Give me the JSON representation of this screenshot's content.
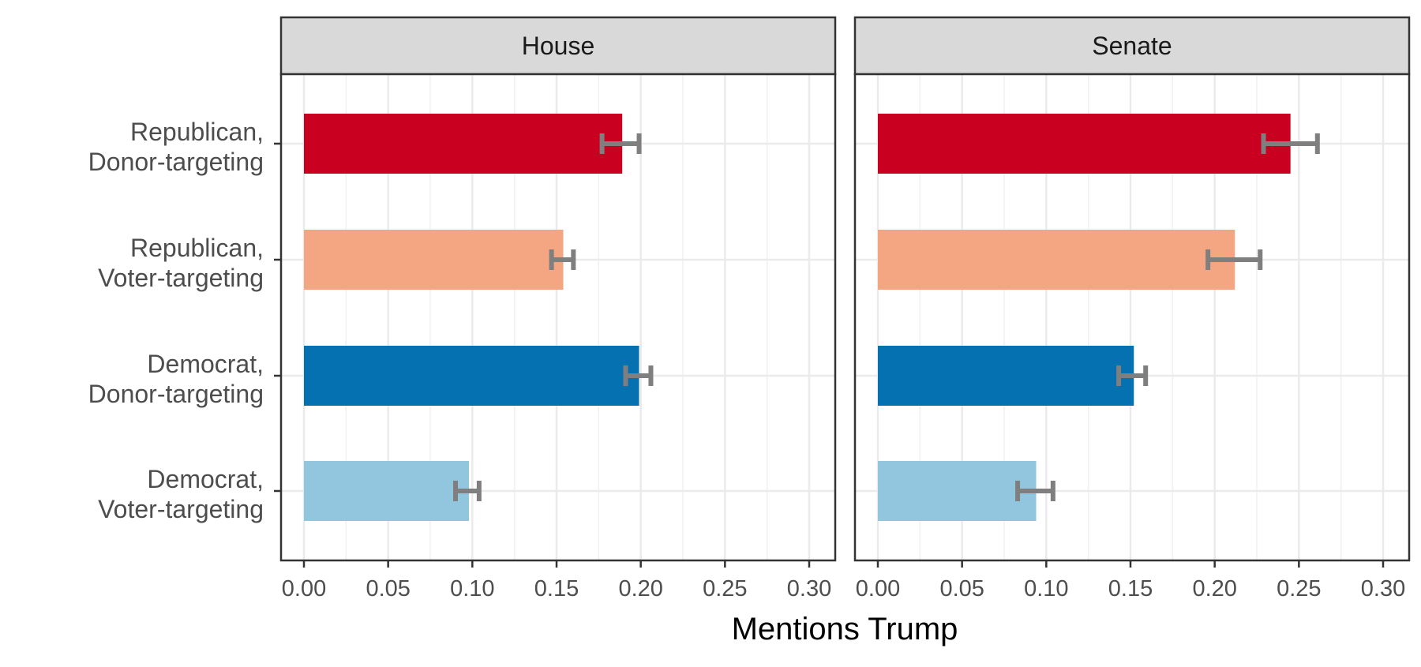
{
  "chart_data": {
    "type": "bar",
    "orientation": "horizontal",
    "xlabel": "Mentions Trump",
    "xlim": [
      0,
      0.3
    ],
    "xticks": [
      "0.00",
      "0.05",
      "0.10",
      "0.15",
      "0.20",
      "0.25",
      "0.30"
    ],
    "grid": true,
    "categories": [
      "Republican,\nDonor-targeting",
      "Republican,\nVoter-targeting",
      "Democrat,\nDonor-targeting",
      "Democrat,\nVoter-targeting"
    ],
    "category_colors": [
      "#ca0020",
      "#f4a582",
      "#0571b0",
      "#92c5de"
    ],
    "error_bar_color": "#7f7f7f",
    "panels": [
      {
        "title": "House",
        "values": [
          0.189,
          0.154,
          0.199,
          0.098
        ],
        "error_low": [
          0.177,
          0.147,
          0.191,
          0.09
        ],
        "error_high": [
          0.199,
          0.16,
          0.206,
          0.104
        ]
      },
      {
        "title": "Senate",
        "values": [
          0.245,
          0.212,
          0.152,
          0.094
        ],
        "error_low": [
          0.229,
          0.196,
          0.143,
          0.083
        ],
        "error_high": [
          0.261,
          0.227,
          0.159,
          0.104
        ]
      }
    ]
  }
}
